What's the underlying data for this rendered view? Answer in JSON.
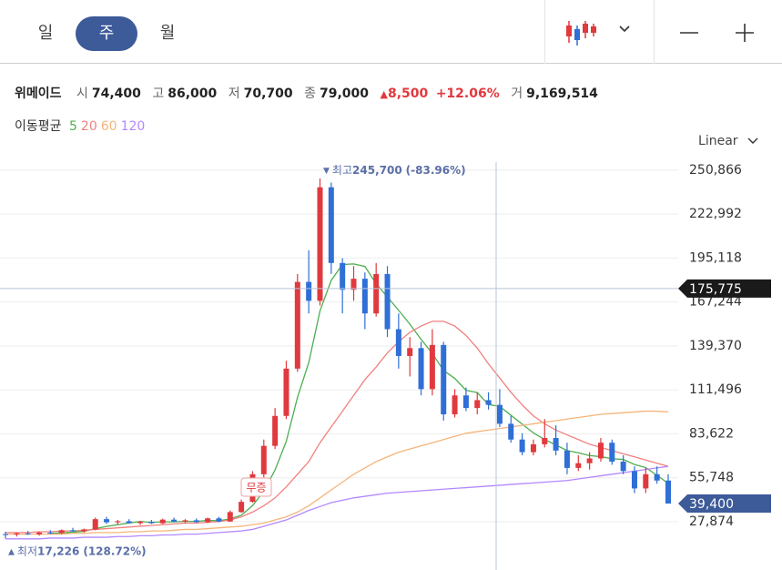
{
  "ui": {
    "tabs": [
      "일",
      "주",
      "월"
    ],
    "scale_mode": "Linear"
  },
  "stock": {
    "name": "위메이드",
    "open_label": "시",
    "open": "74,400",
    "high_label": "고",
    "high": "86,000",
    "low_label": "저",
    "low": "70,700",
    "close_label": "종",
    "close": "79,000",
    "change": "8,500",
    "change_pct": "+12.06%",
    "volume_label": "거",
    "volume": "9,169,514"
  },
  "chart_data": {
    "type": "candlestick",
    "legend_title": "이동평균",
    "up_color": "#e0393e",
    "down_color": "#2f6fd6",
    "open": [
      20000,
      19800,
      20500,
      19900,
      21000,
      20600,
      22500,
      21800,
      23000,
      29500,
      27500,
      28200,
      27000,
      27800,
      26900,
      29200,
      28000,
      28800,
      27600,
      30000,
      28000,
      34000,
      40500,
      58000,
      76000,
      95000,
      125000,
      180000,
      168000,
      240000,
      192000,
      175000,
      182000,
      160000,
      185000,
      150000,
      133000,
      138000,
      112000,
      140000,
      96000,
      108000,
      100000,
      105000,
      102000,
      90000,
      80000,
      72000,
      77000,
      81000,
      73000,
      62000,
      65000,
      68000,
      78000,
      66000,
      60000,
      49000,
      58000,
      54000
    ],
    "high": [
      21500,
      21000,
      22000,
      21500,
      22500,
      23000,
      24000,
      23500,
      30500,
      31000,
      29000,
      29500,
      28500,
      29000,
      29800,
      30500,
      29500,
      30000,
      30500,
      31000,
      35000,
      42000,
      60000,
      80000,
      100000,
      130000,
      185000,
      200000,
      245700,
      243000,
      195000,
      190000,
      186000,
      192000,
      190000,
      160000,
      145000,
      142000,
      150000,
      142000,
      112000,
      113000,
      110000,
      110000,
      112000,
      95000,
      84000,
      80000,
      93000,
      89000,
      78000,
      70000,
      72000,
      81000,
      80000,
      70000,
      63000,
      62000,
      63000,
      58000
    ],
    "low": [
      17226,
      18500,
      19500,
      19000,
      20000,
      20000,
      21500,
      21000,
      22500,
      26500,
      26000,
      26800,
      25800,
      26500,
      26500,
      27500,
      27000,
      27200,
      27000,
      27500,
      27800,
      33500,
      40000,
      56000,
      74000,
      93000,
      123000,
      160000,
      165000,
      185000,
      160000,
      168000,
      150000,
      158000,
      145000,
      125000,
      120000,
      108000,
      108000,
      92000,
      94000,
      98000,
      96000,
      99000,
      88000,
      78000,
      70000,
      70000,
      75000,
      70000,
      58000,
      60000,
      61000,
      66000,
      64000,
      58000,
      46000,
      46000,
      52000,
      39400
    ],
    "close": [
      19800,
      20500,
      19900,
      21000,
      20600,
      22500,
      21800,
      23000,
      29500,
      27500,
      28200,
      27000,
      27800,
      26900,
      29200,
      28000,
      28800,
      27600,
      30000,
      28000,
      34000,
      40500,
      58000,
      76000,
      95000,
      125000,
      180000,
      168000,
      240000,
      192000,
      175000,
      182000,
      160000,
      185000,
      150000,
      133000,
      138000,
      112000,
      140000,
      96000,
      108000,
      100000,
      105000,
      102000,
      90000,
      80000,
      72000,
      77000,
      81000,
      73000,
      62000,
      65000,
      68000,
      78000,
      66000,
      60000,
      49000,
      58000,
      54000,
      39400
    ],
    "series": [
      {
        "name": "5",
        "color": "#4caf50",
        "values": [
          null,
          null,
          null,
          null,
          20400,
          20900,
          21200,
          21800,
          23500,
          24900,
          26000,
          27100,
          28000,
          27500,
          27800,
          27800,
          28100,
          28100,
          28700,
          28500,
          29700,
          32000,
          38100,
          47300,
          60700,
          78900,
          106800,
          128800,
          161600,
          181000,
          191000,
          191400,
          189800,
          178800,
          170400,
          162000,
          153200,
          143600,
          134600,
          123800,
          118800,
          111200,
          109800,
          102200,
          101000,
          95400,
          89800,
          84200,
          80000,
          76600,
          73000,
          71600,
          69800,
          69200,
          67800,
          67400,
          64200,
          62200,
          57400,
          52100
        ]
      },
      {
        "name": "20",
        "color": "#f08080",
        "values": [
          21000,
          21000,
          21000,
          21500,
          21500,
          22000,
          22000,
          22500,
          23000,
          23500,
          24000,
          24500,
          25000,
          25500,
          26000,
          26500,
          27000,
          27000,
          27500,
          28000,
          29000,
          31000,
          34000,
          38000,
          43000,
          50000,
          58000,
          66000,
          78000,
          88000,
          98000,
          108000,
          118000,
          126000,
          135000,
          142000,
          148000,
          152000,
          155000,
          155000,
          152000,
          146000,
          138000,
          128000,
          119000,
          110000,
          102000,
          95000,
          90000,
          86000,
          83000,
          80000,
          77000,
          75000,
          73000,
          71000,
          69000,
          67000,
          65000,
          63000
        ]
      },
      {
        "name": "60",
        "color": "#f5b57a",
        "values": [
          20000,
          20000,
          20000,
          20000,
          20000,
          20000,
          20500,
          20500,
          21000,
          21000,
          21000,
          21500,
          21500,
          22000,
          22000,
          22500,
          23000,
          23000,
          23500,
          24000,
          24500,
          25000,
          26000,
          27000,
          29000,
          31000,
          34000,
          38000,
          43000,
          48000,
          53000,
          58000,
          62000,
          66000,
          69000,
          72000,
          74000,
          76000,
          78000,
          80000,
          82000,
          84000,
          85000,
          86000,
          87000,
          88000,
          89000,
          90000,
          91000,
          92000,
          93000,
          94000,
          95000,
          96000,
          96500,
          97000,
          97500,
          98000,
          98000,
          97500
        ]
      },
      {
        "name": "120",
        "color": "#b388ff",
        "values": [
          17000,
          17000,
          17000,
          17000,
          17500,
          17500,
          17500,
          18000,
          18000,
          18000,
          18500,
          18500,
          19000,
          19000,
          19500,
          19500,
          20000,
          20000,
          20500,
          21000,
          21500,
          22000,
          23000,
          25000,
          27000,
          29000,
          32000,
          35000,
          37500,
          40000,
          41500,
          43000,
          44000,
          45000,
          46000,
          46500,
          47000,
          47500,
          48000,
          48500,
          49000,
          49500,
          50000,
          50500,
          51000,
          51500,
          52000,
          52500,
          53000,
          53500,
          54000,
          55000,
          56000,
          57000,
          58000,
          59000,
          60000,
          61000,
          62000,
          63000
        ]
      }
    ],
    "ylim": [
      0,
      256000
    ],
    "yticks": [
      {
        "value": 27874,
        "label": "27,874"
      },
      {
        "value": 55748,
        "label": "55,748"
      },
      {
        "value": 83622,
        "label": "83,622"
      },
      {
        "value": 111496,
        "label": "111,496"
      },
      {
        "value": 139370,
        "label": "139,370"
      },
      {
        "value": 167244,
        "label": "167,244"
      },
      {
        "value": 195118,
        "label": "195,118"
      },
      {
        "value": 222992,
        "label": "222,992"
      },
      {
        "value": 250866,
        "label": "250,866"
      }
    ],
    "grid": true,
    "crosshair": {
      "value": 175775,
      "label": "175,775"
    },
    "last_price": {
      "value": 39400,
      "label": "39,400"
    },
    "high_annotation": {
      "label": "최고",
      "value": 245700,
      "value_label": "245,700",
      "change": "(-83.96%)"
    },
    "low_annotation": {
      "label": "최저",
      "value": 17226,
      "value_label": "17,226",
      "change": "(128.72%)"
    },
    "event_label": "무증"
  }
}
